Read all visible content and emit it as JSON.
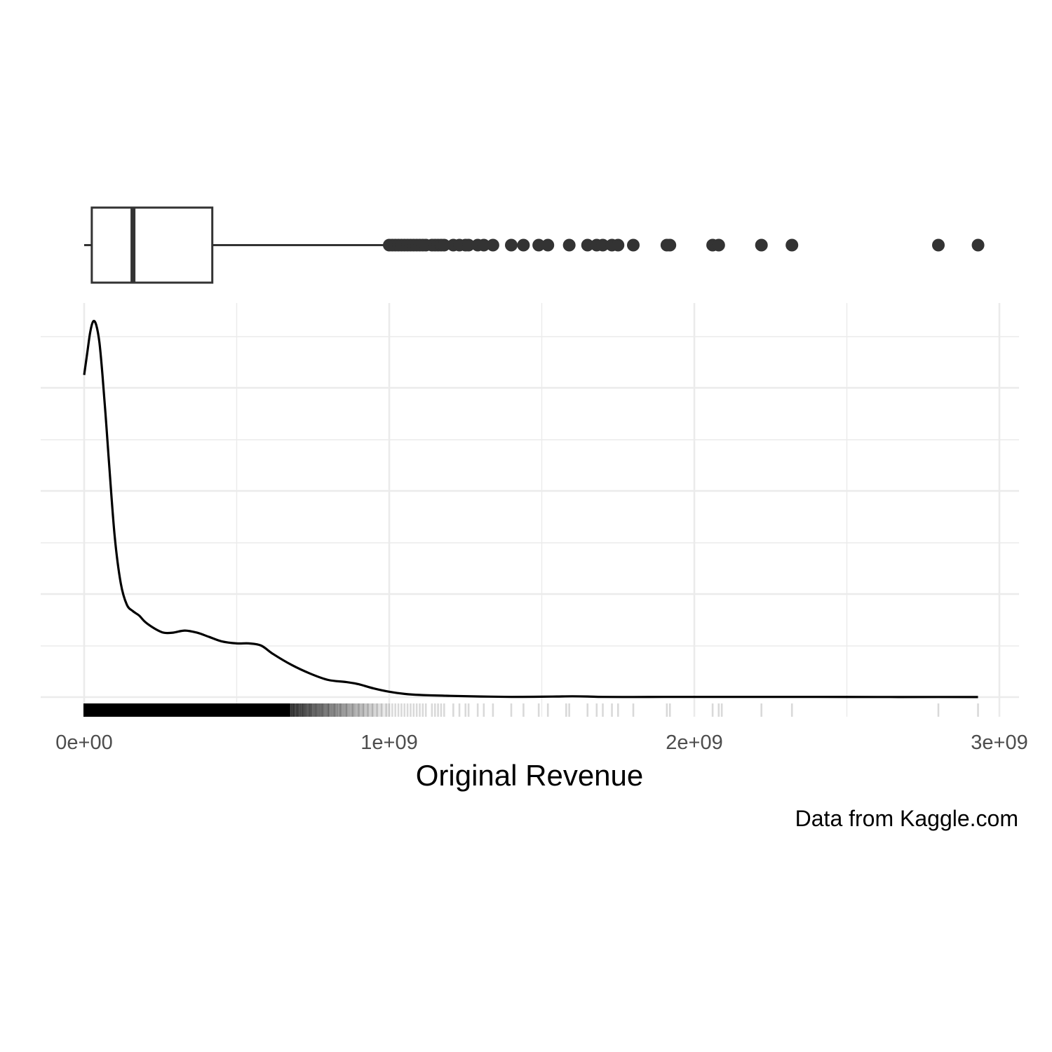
{
  "chart_data": {
    "type": "density",
    "xlabel": "Original Revenue",
    "ylabel": "",
    "caption": "Data from Kaggle.com",
    "x_ticks": [
      "0e+00",
      "1e+09",
      "2e+09",
      "3e+09"
    ],
    "x_tick_values": [
      0,
      1000000000,
      2000000000,
      3000000000
    ],
    "xlim": [
      -145000000,
      3075000000
    ],
    "ylim": [
      0,
      1.9e-09
    ],
    "grid": true,
    "legend": "none",
    "density": {
      "x": [
        0,
        10000000,
        20000000,
        30000000,
        40000000,
        50000000,
        60000000,
        70000000,
        80000000,
        100000000,
        120000000,
        140000000,
        160000000,
        180000000,
        200000000,
        230000000,
        260000000,
        290000000,
        330000000,
        370000000,
        410000000,
        450000000,
        500000000,
        540000000,
        580000000,
        620000000,
        680000000,
        740000000,
        800000000,
        860000000,
        900000000,
        950000000,
        1000000000,
        1050000000,
        1100000000,
        1200000000,
        1300000000,
        1400000000,
        1500000000,
        1550000000,
        1600000000,
        1650000000,
        1700000000,
        1800000000,
        1900000000,
        2000000000,
        2200000000,
        2400000000,
        2600000000,
        2800000000,
        2930000000
      ],
      "y": [
        1.5e-09,
        1.6e-09,
        1.7e-09,
        1.75e-09,
        1.73e-09,
        1.65e-09,
        1.5e-09,
        1.32e-09,
        1.12e-09,
        7.5e-10,
        5.3e-10,
        4.3e-10,
        4e-10,
        3.8e-10,
        3.5e-10,
        3.2e-10,
        3e-10,
        3e-10,
        3.1e-10,
        3e-10,
        2.8e-10,
        2.6e-10,
        2.5e-10,
        2.5e-10,
        2.4e-10,
        2e-10,
        1.5e-10,
        1.1e-10,
        8e-11,
        7e-11,
        6e-11,
        4e-11,
        2.5e-11,
        1.5e-11,
        1e-11,
        6e-12,
        3e-12,
        1e-12,
        2e-12,
        3e-12,
        4e-12,
        3e-12,
        1e-12,
        5e-13,
        1e-12,
        1e-12,
        1e-12,
        1e-12,
        5e-13,
        5e-13,
        4e-13
      ]
    },
    "boxplot": {
      "min": 0,
      "q1": 25000000,
      "median": 160000000,
      "q3": 420000000,
      "whisker_high": 995000000,
      "outliers": [
        1000000000,
        1010000000,
        1020000000,
        1030000000,
        1040000000,
        1050000000,
        1060000000,
        1070000000,
        1080000000,
        1090000000,
        1100000000,
        1110000000,
        1120000000,
        1140000000,
        1150000000,
        1160000000,
        1170000000,
        1180000000,
        1210000000,
        1230000000,
        1250000000,
        1260000000,
        1290000000,
        1310000000,
        1340000000,
        1400000000,
        1440000000,
        1490000000,
        1520000000,
        1590000000,
        1650000000,
        1680000000,
        1700000000,
        1730000000,
        1750000000,
        1800000000,
        1910000000,
        1920000000,
        2060000000,
        2080000000,
        2220000000,
        2320000000,
        2800000000,
        2930000000
      ]
    },
    "rug": {
      "dense_range": [
        0,
        700000000
      ],
      "sparse_values": [
        700000000,
        720000000,
        740000000,
        760000000,
        780000000,
        800000000,
        820000000,
        840000000,
        860000000,
        880000000,
        900000000,
        915000000,
        930000000,
        945000000,
        960000000,
        975000000,
        990000000,
        1000000000,
        1010000000,
        1020000000,
        1030000000,
        1040000000,
        1050000000,
        1060000000,
        1070000000,
        1080000000,
        1090000000,
        1100000000,
        1110000000,
        1120000000,
        1140000000,
        1150000000,
        1160000000,
        1170000000,
        1180000000,
        1210000000,
        1230000000,
        1250000000,
        1260000000,
        1290000000,
        1310000000,
        1340000000,
        1400000000,
        1440000000,
        1490000000,
        1520000000,
        1580000000,
        1590000000,
        1650000000,
        1680000000,
        1700000000,
        1730000000,
        1750000000,
        1800000000,
        1910000000,
        1920000000,
        2060000000,
        2080000000,
        2090000000,
        2220000000,
        2320000000,
        2800000000,
        2930000000
      ]
    }
  }
}
